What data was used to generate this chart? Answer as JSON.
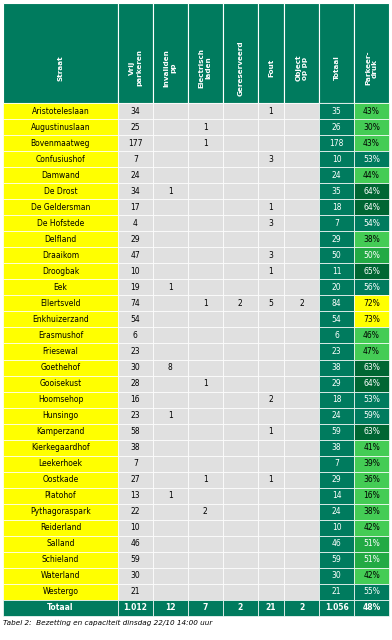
{
  "caption": "Tabel 2:  Bezetting en capaciteit dinsdag 22/10 14:00 uur",
  "headers": [
    "Straat",
    "Vrij\nparkeren",
    "Invaliden\npp",
    "Electrisch\nladen",
    "Gereserveerd",
    "Fout",
    "Object\nop pp",
    "Totaal",
    "Parkeer-\ndruk"
  ],
  "rows": [
    [
      "Aristoteleslaan",
      "34",
      "",
      "",
      "",
      "1",
      "",
      "35",
      "43%"
    ],
    [
      "Augustinuslaan",
      "25",
      "",
      "1",
      "",
      "",
      "",
      "26",
      "30%"
    ],
    [
      "Bovenmaatweg",
      "177",
      "",
      "1",
      "",
      "",
      "",
      "178",
      "43%"
    ],
    [
      "Confusiushof",
      "7",
      "",
      "",
      "",
      "3",
      "",
      "10",
      "53%"
    ],
    [
      "Damwand",
      "24",
      "",
      "",
      "",
      "",
      "",
      "24",
      "44%"
    ],
    [
      "De Drost",
      "34",
      "1",
      "",
      "",
      "",
      "",
      "35",
      "64%"
    ],
    [
      "De Geldersman",
      "17",
      "",
      "",
      "",
      "1",
      "",
      "18",
      "64%"
    ],
    [
      "De Hofstede",
      "4",
      "",
      "",
      "",
      "3",
      "",
      "7",
      "54%"
    ],
    [
      "Delfland",
      "29",
      "",
      "",
      "",
      "",
      "",
      "29",
      "38%"
    ],
    [
      "Draaikom",
      "47",
      "",
      "",
      "",
      "3",
      "",
      "50",
      "50%"
    ],
    [
      "Droogbak",
      "10",
      "",
      "",
      "",
      "1",
      "",
      "11",
      "65%"
    ],
    [
      "Eek",
      "19",
      "1",
      "",
      "",
      "",
      "",
      "20",
      "56%"
    ],
    [
      "Ellertsveld",
      "74",
      "",
      "1",
      "2",
      "5",
      "2",
      "84",
      "72%"
    ],
    [
      "Enkhuizerzand",
      "54",
      "",
      "",
      "",
      "",
      "",
      "54",
      "73%"
    ],
    [
      "Erasmushof",
      "6",
      "",
      "",
      "",
      "",
      "",
      "6",
      "46%"
    ],
    [
      "Friesewal",
      "23",
      "",
      "",
      "",
      "",
      "",
      "23",
      "47%"
    ],
    [
      "Goethehof",
      "30",
      "8",
      "",
      "",
      "",
      "",
      "38",
      "63%"
    ],
    [
      "Gooisekust",
      "28",
      "",
      "1",
      "",
      "",
      "",
      "29",
      "64%"
    ],
    [
      "Hoomsehop",
      "16",
      "",
      "",
      "",
      "2",
      "",
      "18",
      "53%"
    ],
    [
      "Hunsingo",
      "23",
      "1",
      "",
      "",
      "",
      "",
      "24",
      "59%"
    ],
    [
      "Kamperzand",
      "58",
      "",
      "",
      "",
      "1",
      "",
      "59",
      "63%"
    ],
    [
      "Kierkegaardhof",
      "38",
      "",
      "",
      "",
      "",
      "",
      "38",
      "41%"
    ],
    [
      "Leekerhoek",
      "7",
      "",
      "",
      "",
      "",
      "",
      "7",
      "39%"
    ],
    [
      "Oostkade",
      "27",
      "",
      "1",
      "",
      "1",
      "",
      "29",
      "36%"
    ],
    [
      "Platohof",
      "13",
      "1",
      "",
      "",
      "",
      "",
      "14",
      "16%"
    ],
    [
      "Pythagoraspark",
      "22",
      "",
      "2",
      "",
      "",
      "",
      "24",
      "38%"
    ],
    [
      "Reiderland",
      "10",
      "",
      "",
      "",
      "",
      "",
      "10",
      "42%"
    ],
    [
      "Salland",
      "46",
      "",
      "",
      "",
      "",
      "",
      "46",
      "51%"
    ],
    [
      "Schieland",
      "59",
      "",
      "",
      "",
      "",
      "",
      "59",
      "51%"
    ],
    [
      "Waterland",
      "30",
      "",
      "",
      "",
      "",
      "",
      "30",
      "42%"
    ],
    [
      "Westergo",
      "21",
      "",
      "",
      "",
      "",
      "",
      "21",
      "55%"
    ],
    [
      "Totaal",
      "1.012",
      "12",
      "7",
      "2",
      "21",
      "2",
      "1.056",
      "48%"
    ]
  ],
  "header_bg": "#007B5E",
  "header_text": "#FFFFFF",
  "row_yellow": "#FFFF00",
  "row_gray": "#E0E0E0",
  "totaal_bg": "#007B5E",
  "totaal_text": "#FFFFFF",
  "parkeer_colors": {
    "16%": [
      "#44CC55",
      "#000000"
    ],
    "30%": [
      "#44CC55",
      "#000000"
    ],
    "36%": [
      "#44CC55",
      "#000000"
    ],
    "38%": [
      "#44CC55",
      "#000000"
    ],
    "39%": [
      "#44CC55",
      "#000000"
    ],
    "41%": [
      "#44CC55",
      "#000000"
    ],
    "42%": [
      "#44CC55",
      "#000000"
    ],
    "43%": [
      "#44CC55",
      "#000000"
    ],
    "44%": [
      "#44CC55",
      "#000000"
    ],
    "46%": [
      "#44CC55",
      "#000000"
    ],
    "47%": [
      "#44CC55",
      "#000000"
    ],
    "48%": [
      "#007B5E",
      "#FFFFFF"
    ],
    "50%": [
      "#22AA44",
      "#FFFFFF"
    ],
    "51%": [
      "#22AA44",
      "#FFFFFF"
    ],
    "53%": [
      "#007B5E",
      "#FFFFFF"
    ],
    "54%": [
      "#007B5E",
      "#FFFFFF"
    ],
    "55%": [
      "#007B5E",
      "#FFFFFF"
    ],
    "56%": [
      "#007B5E",
      "#FFFFFF"
    ],
    "59%": [
      "#007B5E",
      "#FFFFFF"
    ],
    "63%": [
      "#006633",
      "#FFFFFF"
    ],
    "64%": [
      "#006633",
      "#FFFFFF"
    ],
    "65%": [
      "#006633",
      "#FFFFFF"
    ],
    "72%": [
      "#FFFF00",
      "#000000"
    ],
    "73%": [
      "#FFFF00",
      "#000000"
    ]
  },
  "col_widths_rel": [
    2.8,
    0.85,
    0.85,
    0.85,
    0.85,
    0.65,
    0.85,
    0.85,
    0.85
  ]
}
